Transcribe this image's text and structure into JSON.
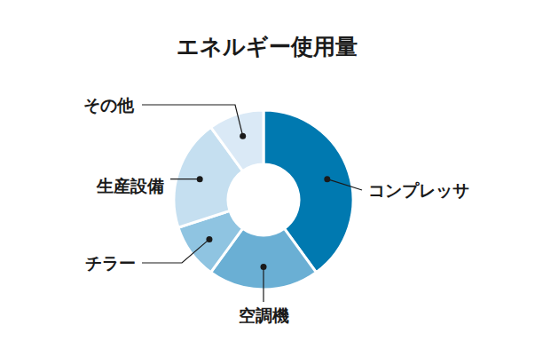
{
  "chart_data": {
    "type": "donut",
    "title": "エネルギー使用量",
    "categories": [
      "コンプレッサ",
      "空調機",
      "チラー",
      "生産設備",
      "その他"
    ],
    "values": [
      40,
      20,
      10,
      20,
      10
    ],
    "colors": [
      "#0079b0",
      "#6aafd4",
      "#8fc4e1",
      "#c5dff0",
      "#dae9f6"
    ]
  }
}
